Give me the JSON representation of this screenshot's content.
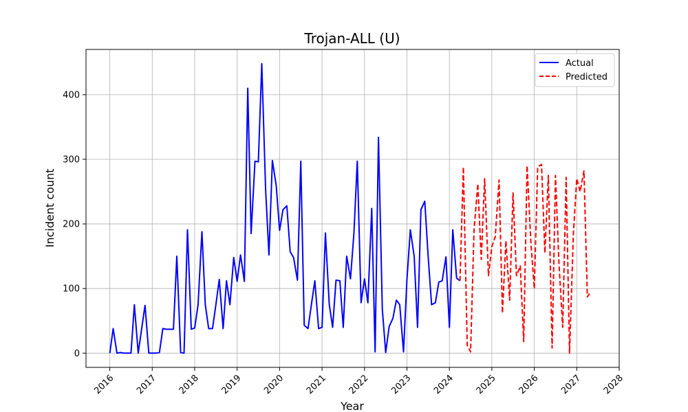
{
  "chart_data": {
    "type": "line",
    "title": "Trojan-ALL (U)",
    "xlabel": "Year",
    "ylabel": "Incident count",
    "xlim": [
      2015.44,
      2028.0
    ],
    "ylim": [
      -22,
      470
    ],
    "x_ticks": [
      "2016",
      "2017",
      "2018",
      "2019",
      "2020",
      "2021",
      "2022",
      "2023",
      "2024",
      "2025",
      "2026",
      "2027",
      "2028"
    ],
    "y_ticks": [
      0,
      100,
      200,
      300,
      400
    ],
    "grid": true,
    "legend_position": "top-right",
    "series": [
      {
        "name": "Actual",
        "color": "#0000ff",
        "style": "solid",
        "x": [
          2016.0,
          2016.08,
          2016.17,
          2016.25,
          2016.33,
          2016.42,
          2016.5,
          2016.58,
          2016.67,
          2016.75,
          2016.83,
          2016.92,
          2017.0,
          2017.08,
          2017.17,
          2017.25,
          2017.33,
          2017.42,
          2017.5,
          2017.58,
          2017.67,
          2017.75,
          2017.83,
          2017.92,
          2018.0,
          2018.08,
          2018.17,
          2018.25,
          2018.33,
          2018.42,
          2018.5,
          2018.58,
          2018.67,
          2018.75,
          2018.83,
          2018.92,
          2019.0,
          2019.08,
          2019.17,
          2019.25,
          2019.33,
          2019.42,
          2019.5,
          2019.58,
          2019.67,
          2019.75,
          2019.83,
          2019.92,
          2020.0,
          2020.08,
          2020.17,
          2020.25,
          2020.33,
          2020.42,
          2020.5,
          2020.58,
          2020.67,
          2020.75,
          2020.83,
          2020.92,
          2021.0,
          2021.08,
          2021.17,
          2021.25,
          2021.33,
          2021.42,
          2021.5,
          2021.58,
          2021.67,
          2021.75,
          2021.83,
          2021.92,
          2022.0,
          2022.08,
          2022.17,
          2022.25,
          2022.33,
          2022.42,
          2022.5,
          2022.58,
          2022.67,
          2022.75,
          2022.83,
          2022.92,
          2023.0,
          2023.08,
          2023.17,
          2023.25,
          2023.33,
          2023.42,
          2023.5,
          2023.58,
          2023.67,
          2023.75,
          2023.83,
          2023.92,
          2024.0,
          2024.08,
          2024.17,
          2024.25
        ],
        "y": [
          0,
          38,
          0,
          1,
          0,
          0,
          0,
          75,
          0,
          37,
          74,
          0,
          0,
          0,
          1,
          38,
          37,
          37,
          37,
          150,
          1,
          0,
          191,
          37,
          39,
          75,
          188,
          75,
          38,
          38,
          75,
          114,
          38,
          112,
          75,
          148,
          111,
          152,
          111,
          410,
          185,
          297,
          296,
          448,
          255,
          152,
          298,
          260,
          190,
          222,
          228,
          157,
          148,
          113,
          297,
          43,
          38,
          75,
          112,
          38,
          40,
          186,
          75,
          40,
          113,
          112,
          40,
          150,
          115,
          185,
          297,
          78,
          115,
          78,
          224,
          2,
          334,
          68,
          1,
          41,
          54,
          82,
          75,
          2,
          114,
          191,
          150,
          40,
          222,
          235,
          150,
          75,
          78,
          110,
          112,
          149,
          40,
          191,
          116,
          112
        ]
      },
      {
        "name": "Predicted",
        "color": "#ff0000",
        "style": "dashed",
        "x": [
          2024.25,
          2024.33,
          2024.42,
          2024.5,
          2024.58,
          2024.67,
          2024.75,
          2024.83,
          2024.92,
          2025.0,
          2025.08,
          2025.17,
          2025.25,
          2025.33,
          2025.42,
          2025.5,
          2025.58,
          2025.67,
          2025.75,
          2025.83,
          2025.92,
          2026.0,
          2026.08,
          2026.17,
          2026.25,
          2026.33,
          2026.42,
          2026.5,
          2026.58,
          2026.67,
          2026.75,
          2026.83,
          2026.92,
          2027.0,
          2027.08,
          2027.17,
          2027.25,
          2027.33
        ],
        "y": [
          112,
          288,
          12,
          2,
          190,
          262,
          145,
          270,
          120,
          165,
          180,
          268,
          62,
          174,
          82,
          248,
          120,
          135,
          18,
          290,
          170,
          100,
          288,
          292,
          155,
          275,
          8,
          275,
          140,
          40,
          272,
          0,
          185,
          270,
          250,
          282,
          87,
          95
        ]
      }
    ]
  }
}
